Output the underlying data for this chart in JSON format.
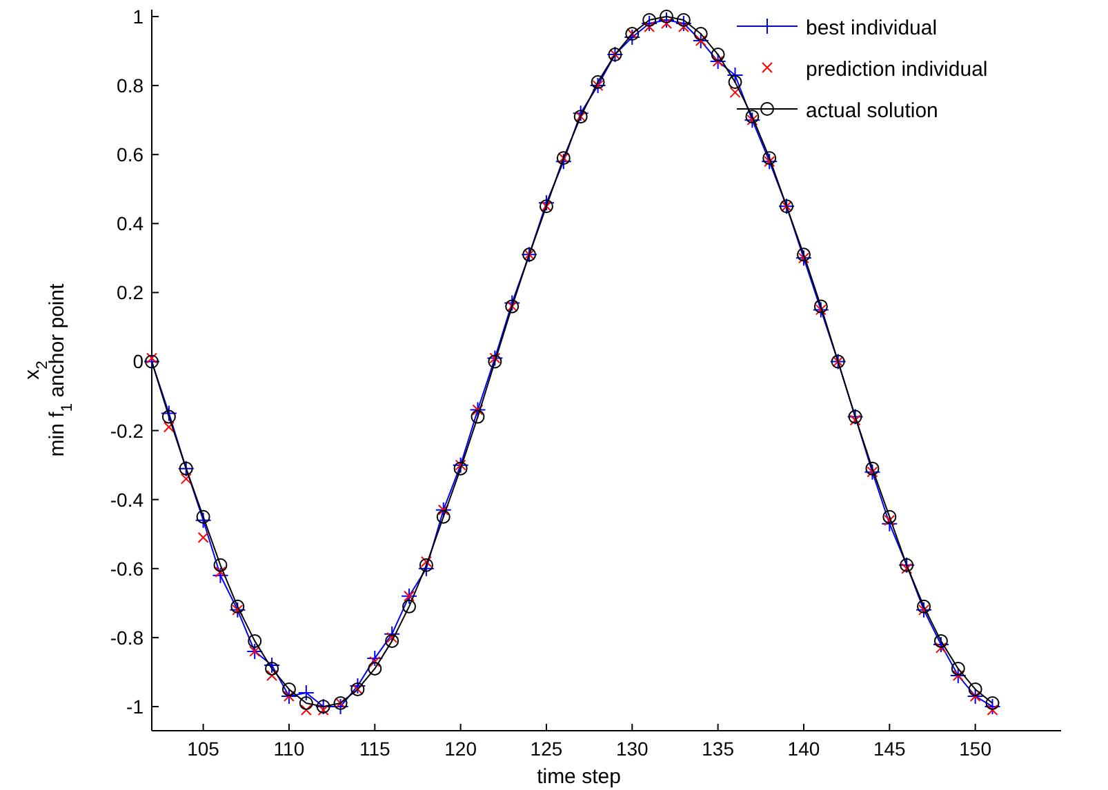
{
  "chart_data": {
    "type": "line",
    "xlabel": "time step",
    "ylabel": "x$_{2}$\nmin f$_{1}$ anchor point",
    "x": [
      102,
      103,
      104,
      105,
      106,
      107,
      108,
      109,
      110,
      111,
      112,
      113,
      114,
      115,
      116,
      117,
      118,
      119,
      120,
      121,
      122,
      123,
      124,
      125,
      126,
      127,
      128,
      129,
      130,
      131,
      132,
      133,
      134,
      135,
      136,
      137,
      138,
      139,
      140,
      141,
      142,
      143,
      144,
      145,
      146,
      147,
      148,
      149,
      150,
      151
    ],
    "xlim": [
      102,
      155
    ],
    "xticks": [
      105,
      110,
      115,
      120,
      125,
      130,
      135,
      140,
      145,
      150
    ],
    "ylim": [
      -1.07,
      1.02
    ],
    "yticks": [
      -1,
      -0.8,
      -0.6,
      -0.4,
      -0.2,
      0,
      0.2,
      0.4,
      0.6,
      0.8,
      1
    ],
    "grid": false,
    "legend": "top right",
    "series": [
      {
        "name": "best individual",
        "type": "line",
        "marker": "cross",
        "color": "#0000ff",
        "values": [
          0,
          -0.15,
          -0.31,
          -0.46,
          -0.62,
          -0.72,
          -0.84,
          -0.88,
          -0.97,
          -0.96,
          -1.0,
          -1.0,
          -0.94,
          -0.86,
          -0.79,
          -0.68,
          -0.6,
          -0.43,
          -0.3,
          -0.14,
          0.01,
          0.17,
          0.31,
          0.46,
          0.58,
          0.72,
          0.8,
          0.89,
          0.94,
          0.98,
          0.99,
          0.98,
          0.93,
          0.87,
          0.83,
          0.7,
          0.58,
          0.45,
          0.3,
          0.15,
          0,
          -0.16,
          -0.32,
          -0.47,
          -0.59,
          -0.72,
          -0.82,
          -0.91,
          -0.97,
          -1.0
        ]
      },
      {
        "name": "prediction individual",
        "type": "scatter",
        "marker": "cross",
        "color": "#ff0000",
        "values": [
          0.01,
          -0.19,
          -0.34,
          -0.51,
          -0.61,
          -0.72,
          -0.84,
          -0.91,
          -0.97,
          -1.01,
          -1.01,
          -0.99,
          -0.95,
          -0.87,
          -0.8,
          -0.68,
          -0.58,
          -0.43,
          -0.3,
          -0.14,
          0.01,
          0.16,
          0.31,
          0.45,
          0.59,
          0.71,
          0.8,
          0.89,
          0.95,
          0.97,
          0.98,
          0.97,
          0.93,
          0.87,
          0.78,
          0.7,
          0.58,
          0.45,
          0.3,
          0.15,
          0,
          -0.17,
          -0.32,
          -0.46,
          -0.6,
          -0.72,
          -0.83,
          -0.91,
          -0.97,
          -1.01
        ]
      },
      {
        "name": "actual solution",
        "type": "line",
        "marker": "circle",
        "color": "#000000",
        "values": [
          0,
          -0.16,
          -0.31,
          -0.45,
          -0.59,
          -0.71,
          -0.81,
          -0.89,
          -0.95,
          -0.99,
          -1,
          -0.99,
          -0.95,
          -0.89,
          -0.81,
          -0.71,
          -0.59,
          -0.45,
          -0.31,
          -0.16,
          0,
          0.16,
          0.31,
          0.45,
          0.59,
          0.71,
          0.81,
          0.89,
          0.95,
          0.99,
          1,
          0.99,
          0.95,
          0.89,
          0.81,
          0.71,
          0.59,
          0.45,
          0.31,
          0.16,
          0,
          -0.16,
          -0.31,
          -0.45,
          -0.59,
          -0.71,
          -0.81,
          -0.89,
          -0.95,
          -0.99
        ]
      }
    ]
  }
}
